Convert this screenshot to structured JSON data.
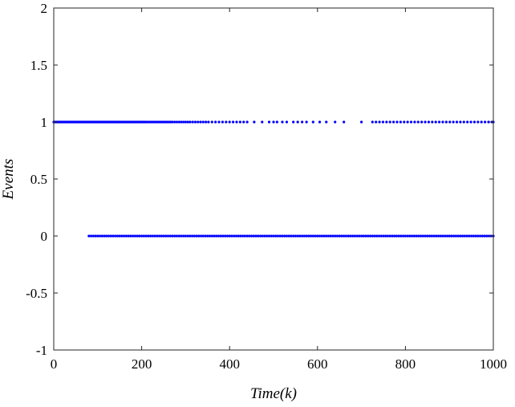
{
  "chart_data": {
    "type": "scatter",
    "title": "",
    "xlabel": "Time(k)",
    "ylabel": "Events",
    "xlim": [
      0,
      1000
    ],
    "ylim": [
      -1,
      2
    ],
    "xticks": [
      0,
      200,
      400,
      600,
      800,
      1000
    ],
    "xtick_labels": [
      "0",
      "200",
      "400",
      "600",
      "800",
      "1000"
    ],
    "yticks": [
      -1,
      -0.5,
      0,
      0.5,
      1,
      1.5,
      2
    ],
    "ytick_labels": [
      "-1",
      "-0.5",
      "0",
      "0.5",
      "1",
      "1.5",
      "2"
    ],
    "grid": false,
    "legend": "none",
    "marker_color": "#0000ff",
    "series": [
      {
        "y": 1,
        "x": [
          0,
          2,
          4,
          6,
          8,
          10,
          12,
          14,
          16,
          18,
          20,
          22,
          24,
          26,
          28,
          30,
          32,
          34,
          36,
          38,
          40,
          42,
          44,
          46,
          48,
          50,
          52,
          54,
          56,
          58,
          60,
          62,
          64,
          66,
          68,
          70,
          72,
          74,
          76,
          78,
          80,
          82,
          84,
          86,
          88,
          90,
          92,
          94,
          96,
          98,
          100,
          102,
          104,
          106,
          108,
          110,
          112,
          114,
          116,
          118,
          120,
          122,
          124,
          126,
          128,
          130,
          132,
          134,
          136,
          138,
          140,
          142,
          144,
          146,
          148,
          150,
          153,
          156,
          159,
          162,
          165,
          168,
          171,
          174,
          177,
          180,
          183,
          186,
          189,
          192,
          195,
          198,
          201,
          204,
          207,
          210,
          214,
          218,
          222,
          226,
          230,
          234,
          238,
          242,
          246,
          250,
          254,
          258,
          262,
          266,
          270,
          275,
          280,
          285,
          290,
          295,
          300,
          305,
          310,
          316,
          322,
          328,
          334,
          340,
          346,
          352,
          360,
          368,
          376,
          384,
          392,
          400,
          408,
          416,
          424,
          432,
          440,
          456,
          474,
          490,
          500,
          508,
          520,
          530,
          545,
          555,
          565,
          575,
          590,
          605,
          620,
          640,
          660,
          700,
          725,
          733,
          741,
          749,
          757,
          765,
          773,
          781,
          789,
          797,
          805,
          813,
          821,
          829,
          837,
          845,
          853,
          861,
          869,
          877,
          885,
          893,
          901,
          909,
          917,
          925,
          933,
          941,
          949,
          957,
          965,
          973,
          981,
          989,
          997,
          1000
        ]
      },
      {
        "y": 0,
        "x": [
          80,
          85,
          90,
          95,
          100,
          105,
          110,
          115,
          120,
          125,
          130,
          135,
          140,
          145,
          150,
          155,
          160,
          165,
          170,
          175,
          180,
          185,
          190,
          195,
          200,
          205,
          210,
          215,
          220,
          225,
          230,
          235,
          240,
          245,
          250,
          255,
          260,
          265,
          270,
          275,
          280,
          285,
          290,
          295,
          300,
          305,
          310,
          315,
          320,
          325,
          330,
          335,
          340,
          345,
          350,
          355,
          360,
          365,
          370,
          375,
          380,
          385,
          390,
          395,
          400,
          405,
          410,
          415,
          420,
          425,
          430,
          435,
          440,
          445,
          450,
          455,
          460,
          465,
          470,
          475,
          480,
          485,
          490,
          495,
          500,
          505,
          510,
          515,
          520,
          525,
          530,
          535,
          540,
          545,
          550,
          555,
          560,
          565,
          570,
          575,
          580,
          585,
          590,
          595,
          600,
          605,
          610,
          615,
          620,
          625,
          630,
          635,
          640,
          645,
          650,
          655,
          660,
          665,
          670,
          675,
          680,
          685,
          690,
          695,
          700,
          705,
          710,
          715,
          720,
          725,
          730,
          735,
          740,
          745,
          750,
          755,
          760,
          765,
          770,
          775,
          780,
          785,
          790,
          795,
          800,
          805,
          810,
          815,
          820,
          825,
          830,
          835,
          840,
          845,
          850,
          855,
          860,
          865,
          870,
          875,
          880,
          885,
          890,
          895,
          900,
          905,
          910,
          915,
          920,
          925,
          930,
          935,
          940,
          945,
          950,
          955,
          960,
          965,
          970,
          975,
          980,
          985,
          990,
          995,
          1000
        ]
      }
    ]
  }
}
